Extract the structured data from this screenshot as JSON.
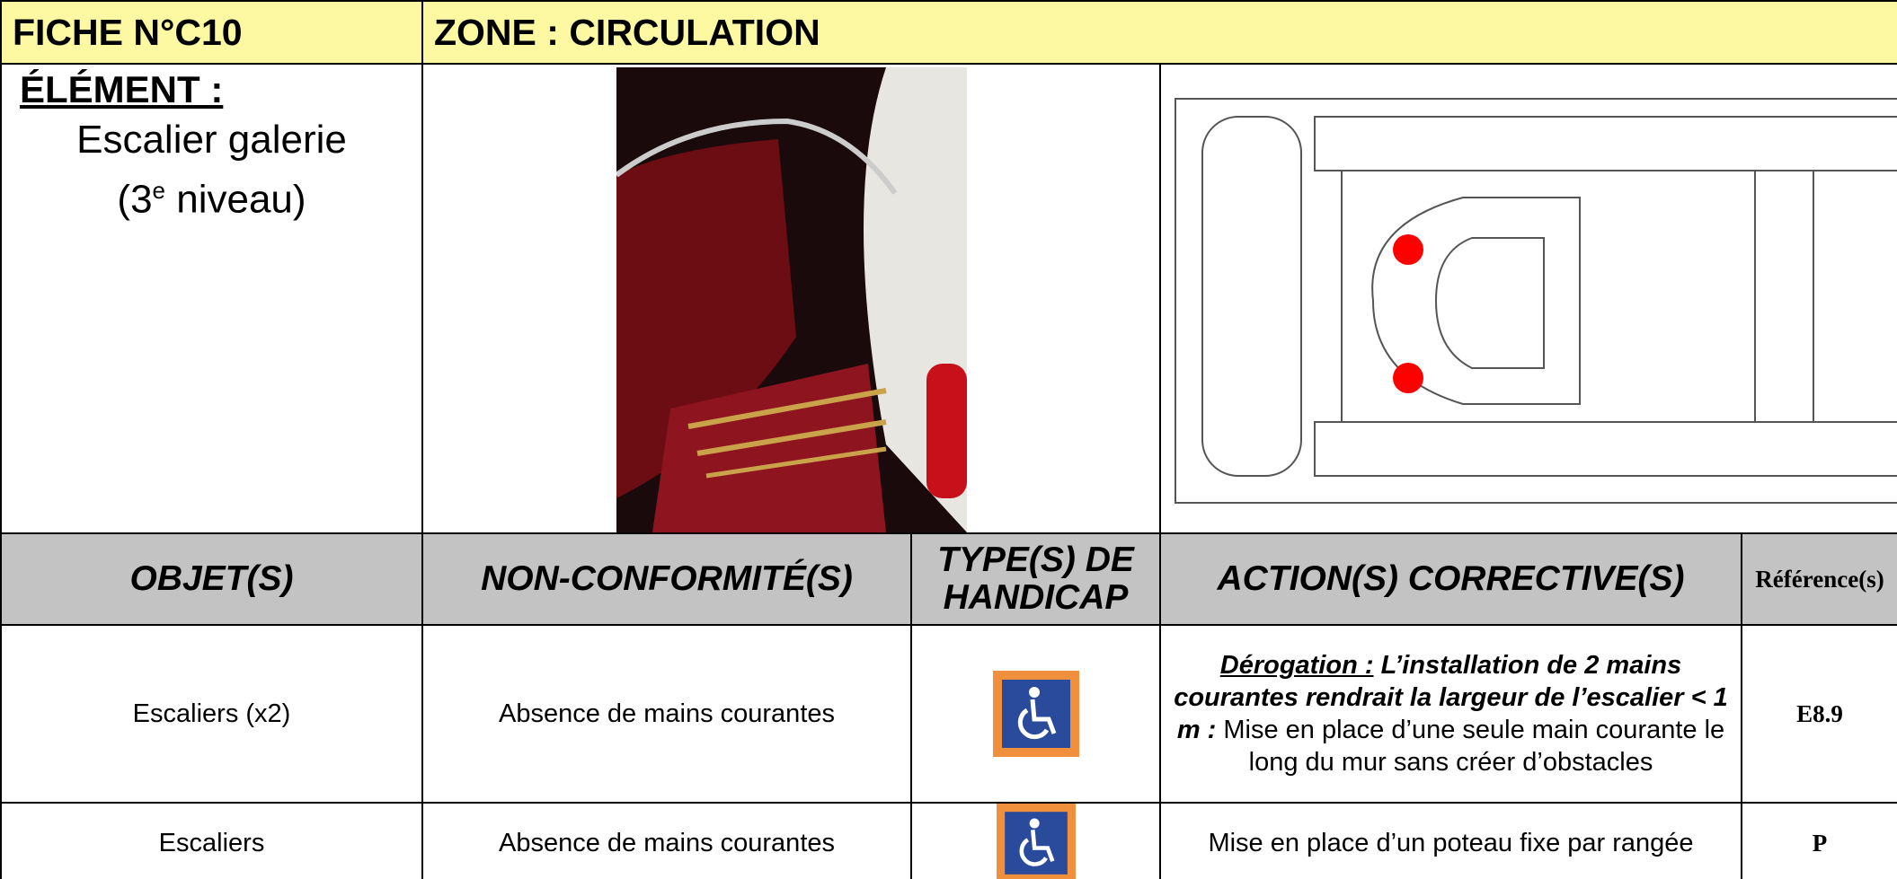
{
  "header": {
    "fiche": "FICHE N°C10",
    "zone": "ZONE : CIRCULATION"
  },
  "element": {
    "label": "ÉLÉMENT :",
    "name": "Escalier galerie",
    "level_start": "(3",
    "level_sup": "e",
    "level_end": " niveau)"
  },
  "table": {
    "columns": [
      "OBJET(S)",
      "NON-CONFORMITÉ(S)",
      "TYPE(S) DE HANDICAP",
      "ACTION(S) CORRECTIVE(S)",
      "Référence(s)"
    ],
    "rows": [
      {
        "objet": "Escaliers (x2)",
        "non_conformite": "Absence de mains courantes",
        "action_label": "Dérogation :",
        "action_emphasis": " L’installation de 2 mains courantes rendrait la largeur de l’escalier < 1 m :",
        "action": " Mise en place d’une seule main courante le long du mur sans créer d’obstacles",
        "reference": "E8.9"
      },
      {
        "objet": "Escaliers",
        "non_conformite": "Absence de mains courantes",
        "action": "Mise en place d’un poteau fixe par rangée",
        "reference": "P"
      }
    ]
  }
}
